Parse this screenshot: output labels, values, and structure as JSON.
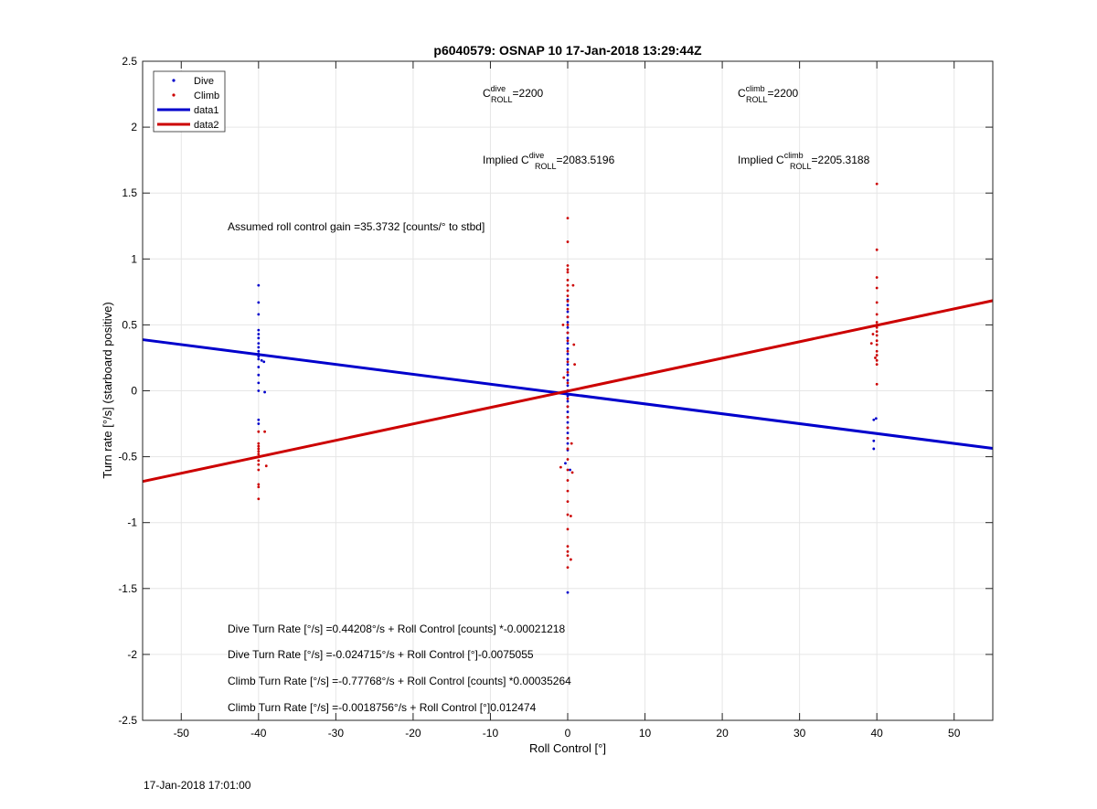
{
  "footer_timestamp": "17-Jan-2018 17:01:00",
  "colors": {
    "dive": "#0000cc",
    "climb": "#cc0000",
    "grid": "#e6e6e6"
  },
  "chart_data": {
    "type": "scatter",
    "title": "p6040579: OSNAP 10 17-Jan-2018 13:29:44Z",
    "xlabel": "Roll Control [°]",
    "ylabel": "Turn rate [°/s] (starboard positive)",
    "xlim": [
      -55,
      55
    ],
    "ylim": [
      -2.5,
      2.5
    ],
    "xticks": [
      -50,
      -40,
      -30,
      -20,
      -10,
      0,
      10,
      20,
      30,
      40,
      50
    ],
    "yticks": [
      -2.5,
      -2,
      -1.5,
      -1,
      -0.5,
      0,
      0.5,
      1,
      1.5,
      2,
      2.5
    ],
    "xtick_labels": [
      "-50",
      "-40",
      "-30",
      "-20",
      "-10",
      "0",
      "10",
      "20",
      "30",
      "40",
      "50"
    ],
    "ytick_labels": [
      "-2.5",
      "-2",
      "-1.5",
      "-1",
      "-0.5",
      "0",
      "0.5",
      "1",
      "1.5",
      "2",
      "2.5"
    ],
    "grid": true,
    "legend_position": "top-left",
    "legend": [
      {
        "label": "Dive",
        "style": "dot",
        "color": "#0000cc"
      },
      {
        "label": "Climb",
        "style": "dot",
        "color": "#cc0000"
      },
      {
        "label": "data1",
        "style": "line",
        "color": "#0000cc"
      },
      {
        "label": "data2",
        "style": "line",
        "color": "#cc0000"
      }
    ],
    "series": [
      {
        "name": "Dive",
        "kind": "scatter",
        "color": "#0000cc",
        "points": [
          [
            -40,
            0.8
          ],
          [
            -40,
            0.67
          ],
          [
            -40,
            0.58
          ],
          [
            -40,
            0.46
          ],
          [
            -40,
            0.43
          ],
          [
            -40,
            0.4
          ],
          [
            -40,
            0.36
          ],
          [
            -40,
            0.33
          ],
          [
            -40,
            0.3
          ],
          [
            -40,
            0.28
          ],
          [
            -40,
            0.26
          ],
          [
            -40,
            0.24
          ],
          [
            -39.6,
            0.23
          ],
          [
            -39.3,
            0.22
          ],
          [
            -40,
            0.18
          ],
          [
            -40,
            0.12
          ],
          [
            -40,
            0.06
          ],
          [
            -40,
            0.0
          ],
          [
            -39.2,
            -0.01
          ],
          [
            -40,
            -0.22
          ],
          [
            -40,
            -0.25
          ],
          [
            0,
            0.69
          ],
          [
            0,
            0.65
          ],
          [
            0,
            0.6
          ],
          [
            0,
            0.56
          ],
          [
            0,
            0.52
          ],
          [
            0,
            0.48
          ],
          [
            0,
            0.44
          ],
          [
            0,
            0.4
          ],
          [
            0,
            0.36
          ],
          [
            0,
            0.32
          ],
          [
            0,
            0.28
          ],
          [
            0,
            0.24
          ],
          [
            0,
            0.2
          ],
          [
            0,
            0.16
          ],
          [
            0,
            0.12
          ],
          [
            0,
            0.08
          ],
          [
            0,
            0.04
          ],
          [
            0,
            0.0
          ],
          [
            0,
            -0.04
          ],
          [
            0,
            -0.08
          ],
          [
            0,
            -0.12
          ],
          [
            0,
            -0.16
          ],
          [
            0,
            -0.2
          ],
          [
            0,
            -0.24
          ],
          [
            0,
            -0.28
          ],
          [
            0,
            -0.32
          ],
          [
            0,
            -0.36
          ],
          [
            0,
            -0.4
          ],
          [
            0,
            -0.45
          ],
          [
            -0.3,
            -0.55
          ],
          [
            0.3,
            -0.6
          ],
          [
            0,
            -1.53
          ],
          [
            39.6,
            -0.22
          ],
          [
            39.9,
            -0.21
          ],
          [
            39.6,
            -0.38
          ],
          [
            39.6,
            -0.44
          ]
        ]
      },
      {
        "name": "Climb",
        "kind": "scatter",
        "color": "#cc0000",
        "points": [
          [
            -40,
            -0.31
          ],
          [
            -40,
            -0.4
          ],
          [
            -40,
            -0.42
          ],
          [
            -40,
            -0.44
          ],
          [
            -40,
            -0.46
          ],
          [
            -40,
            -0.48
          ],
          [
            -40,
            -0.5
          ],
          [
            -40,
            -0.53
          ],
          [
            -40,
            -0.56
          ],
          [
            -40,
            -0.6
          ],
          [
            -40,
            -0.71
          ],
          [
            -40,
            -0.73
          ],
          [
            -40,
            -0.82
          ],
          [
            -39,
            -0.57
          ],
          [
            -39.2,
            -0.31
          ],
          [
            0,
            1.31
          ],
          [
            0,
            1.13
          ],
          [
            0,
            0.95
          ],
          [
            0,
            0.92
          ],
          [
            0,
            0.9
          ],
          [
            0,
            0.84
          ],
          [
            0,
            0.8
          ],
          [
            0,
            0.76
          ],
          [
            0,
            0.72
          ],
          [
            0,
            0.68
          ],
          [
            0,
            0.62
          ],
          [
            0,
            0.56
          ],
          [
            0,
            0.5
          ],
          [
            0,
            0.44
          ],
          [
            0,
            0.38
          ],
          [
            0,
            0.3
          ],
          [
            0,
            0.22
          ],
          [
            0,
            0.14
          ],
          [
            0,
            0.06
          ],
          [
            0,
            0.0
          ],
          [
            0,
            -0.06
          ],
          [
            0,
            -0.12
          ],
          [
            0,
            -0.2
          ],
          [
            0,
            -0.28
          ],
          [
            0,
            -0.36
          ],
          [
            0,
            -0.44
          ],
          [
            0,
            -0.52
          ],
          [
            0,
            -0.6
          ],
          [
            0,
            -0.68
          ],
          [
            0,
            -0.76
          ],
          [
            0,
            -0.84
          ],
          [
            0,
            -0.94
          ],
          [
            0,
            -1.05
          ],
          [
            0,
            -1.18
          ],
          [
            0,
            -1.22
          ],
          [
            0,
            -1.25
          ],
          [
            0,
            -1.34
          ],
          [
            0.7,
            0.8
          ],
          [
            -0.6,
            0.5
          ],
          [
            0.8,
            0.35
          ],
          [
            0.9,
            0.2
          ],
          [
            -0.5,
            0.1
          ],
          [
            0.5,
            -0.4
          ],
          [
            -0.9,
            -0.58
          ],
          [
            0.6,
            -0.62
          ],
          [
            0.4,
            -0.95
          ],
          [
            0.4,
            -1.28
          ],
          [
            40,
            1.57
          ],
          [
            40,
            1.07
          ],
          [
            40,
            0.86
          ],
          [
            40,
            0.78
          ],
          [
            40,
            0.67
          ],
          [
            40,
            0.58
          ],
          [
            40,
            0.52
          ],
          [
            40,
            0.5
          ],
          [
            40,
            0.48
          ],
          [
            40,
            0.45
          ],
          [
            40,
            0.42
          ],
          [
            40,
            0.38
          ],
          [
            40,
            0.35
          ],
          [
            40,
            0.3
          ],
          [
            40,
            0.27
          ],
          [
            40,
            0.23
          ],
          [
            40,
            0.2
          ],
          [
            39.5,
            0.43
          ],
          [
            39.3,
            0.36
          ],
          [
            39.8,
            0.25
          ],
          [
            40,
            0.05
          ]
        ]
      },
      {
        "name": "data1",
        "kind": "line",
        "color": "#0000cc",
        "x": [
          -55,
          55
        ],
        "y": [
          0.388,
          -0.437
        ]
      },
      {
        "name": "data2",
        "kind": "line",
        "color": "#cc0000",
        "x": [
          -55,
          55
        ],
        "y": [
          -0.688,
          0.684
        ]
      }
    ],
    "annotations": {
      "c_roll_dive": {
        "prefix": "C",
        "sup": "dive",
        "sub": "ROLL",
        "value": "=2200"
      },
      "c_roll_climb": {
        "prefix": "C",
        "sup": "climb",
        "sub": "ROLL",
        "value": "=2200"
      },
      "implied_dive": {
        "prefix": "Implied C",
        "sup": "dive",
        "sub": "ROLL",
        "value": "=2083.5196"
      },
      "implied_climb": {
        "prefix": "Implied C",
        "sup": "climb",
        "sub": "ROLL",
        "value": "=2205.3188"
      },
      "gain": "Assumed roll control gain =35.3732 [counts/° to stbd]",
      "eq1": "Dive Turn Rate [°/s] =0.44208°/s + Roll Control [counts] *-0.00021218",
      "eq2": "Dive Turn Rate [°/s] =-0.024715°/s + Roll Control [°]-0.0075055",
      "eq3": "Climb Turn Rate [°/s] =-0.77768°/s + Roll Control [counts] *0.00035264",
      "eq4": "Climb Turn Rate [°/s] =-0.0018756°/s + Roll Control [°]0.012474"
    }
  }
}
